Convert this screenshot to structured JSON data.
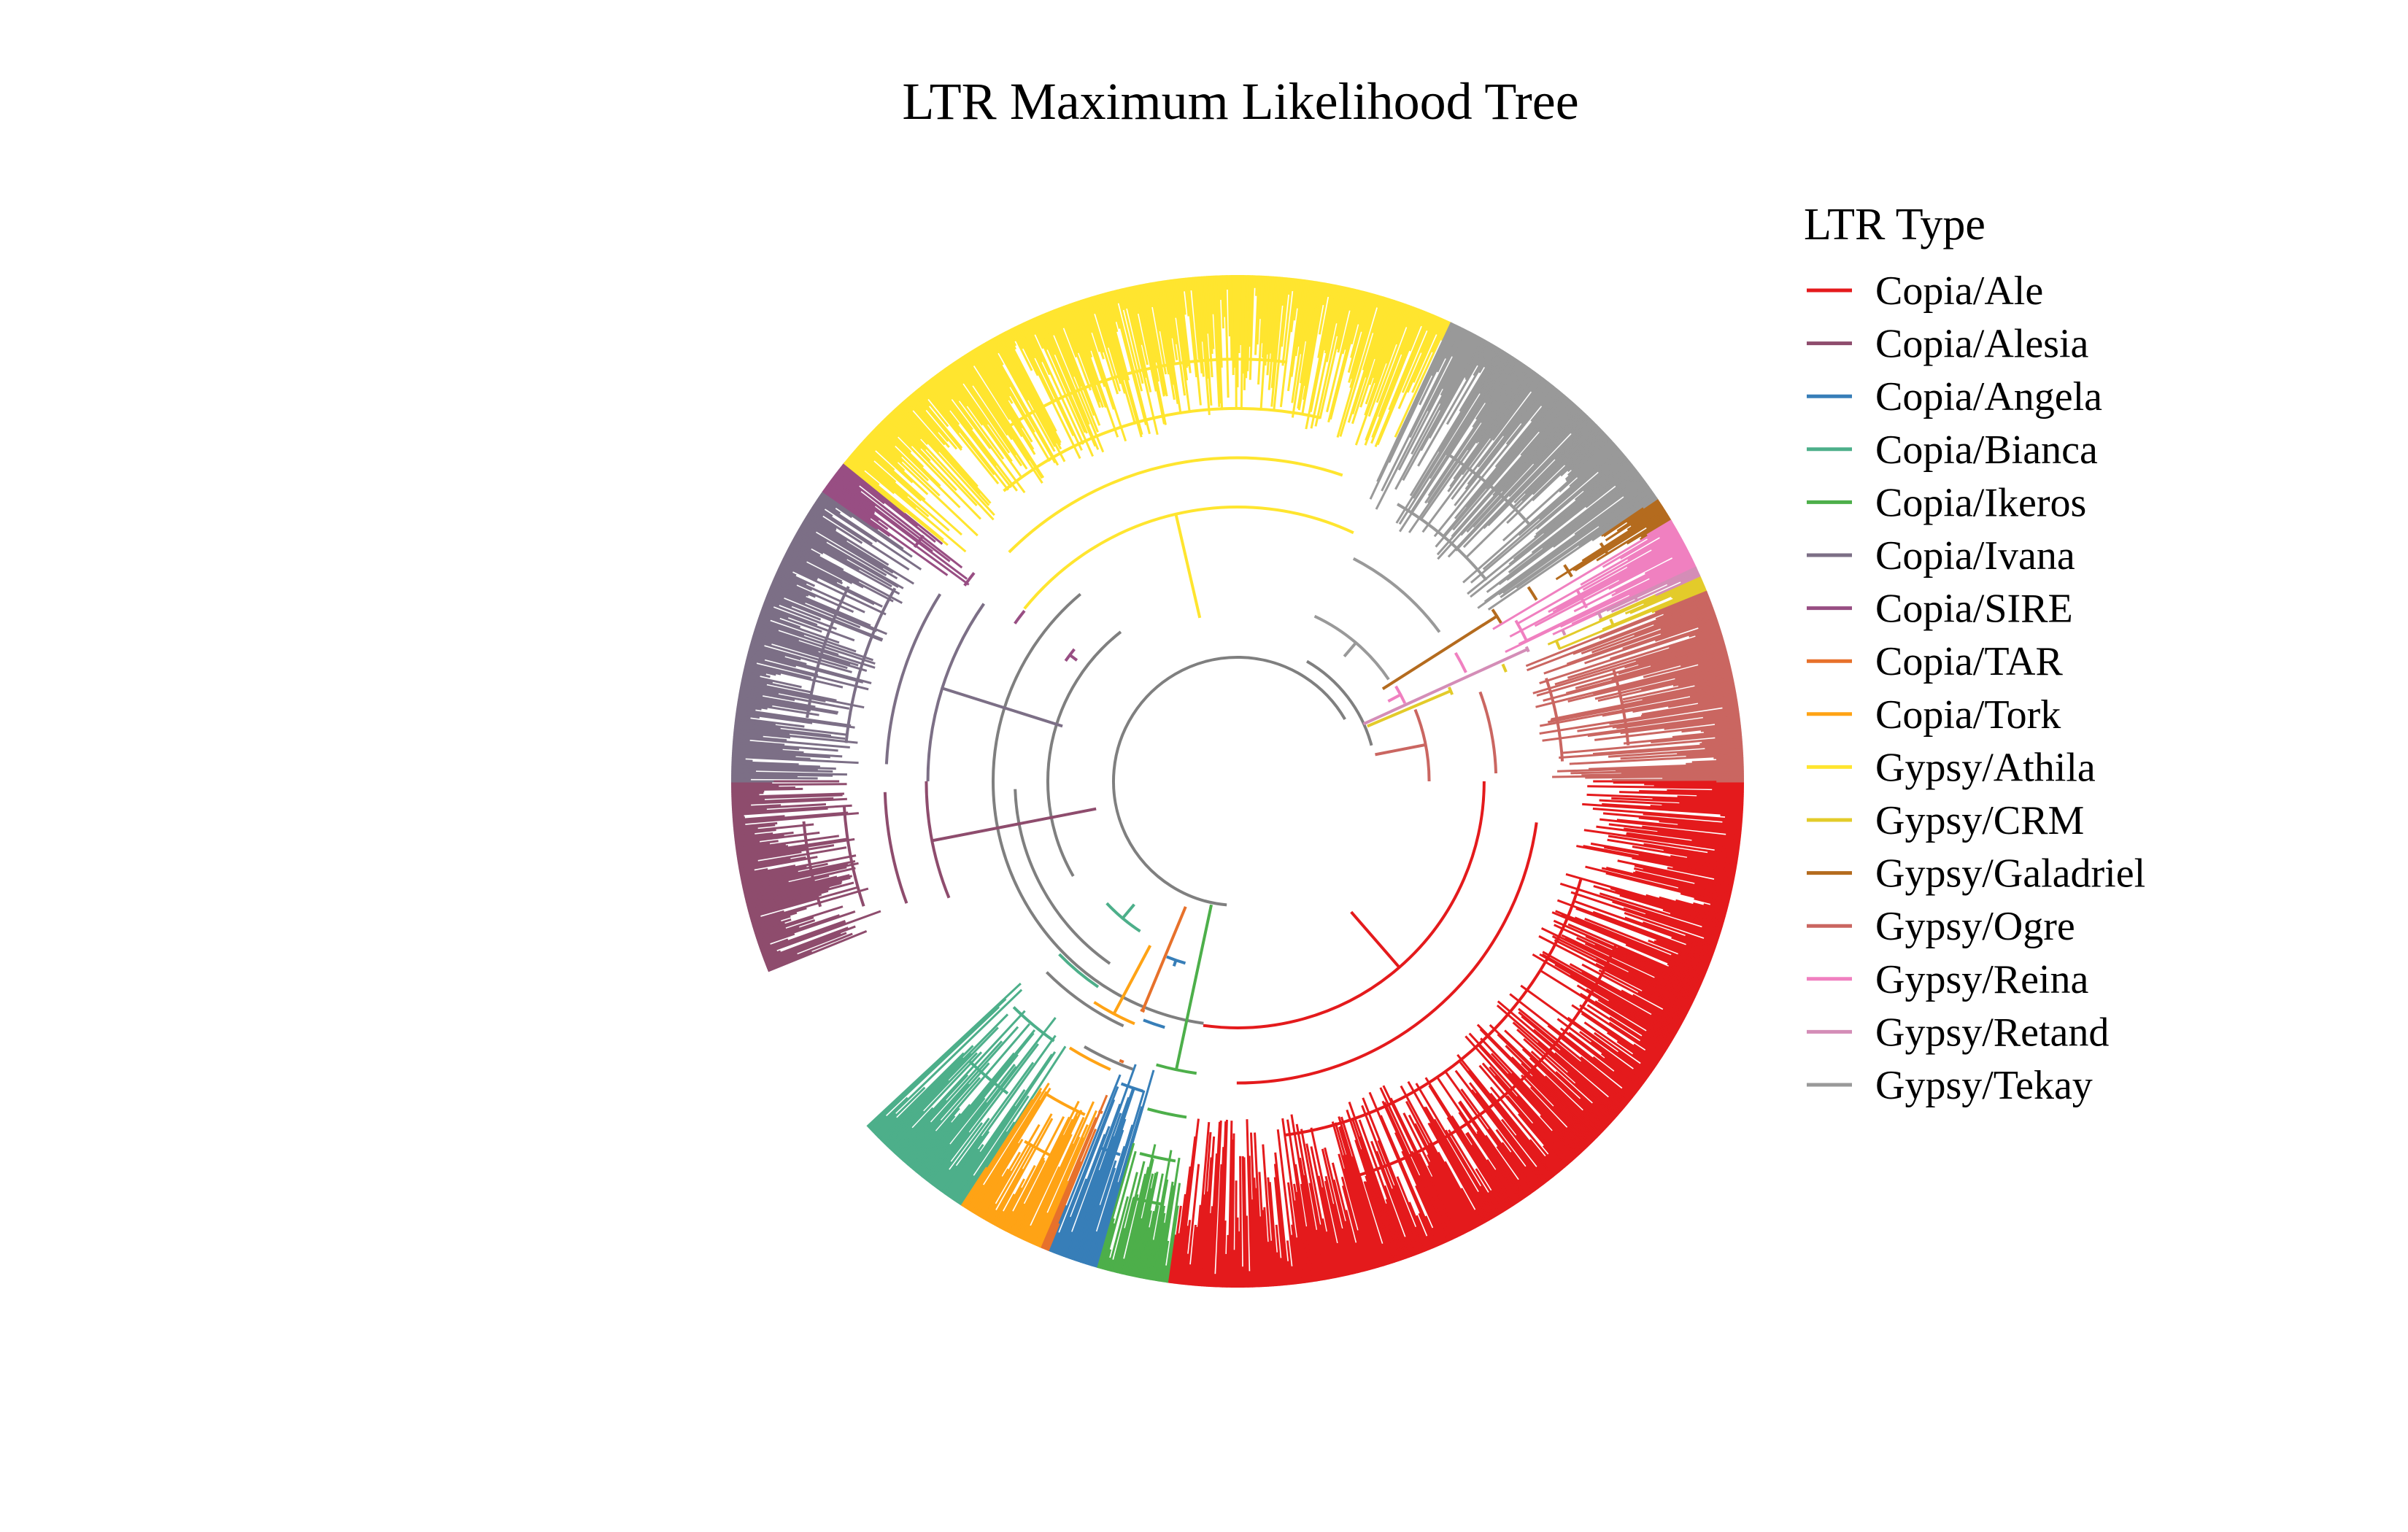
{
  "figure": {
    "title": "LTR Maximum Likelihood Tree",
    "legend_title": "LTR Type"
  },
  "chart_data": {
    "type": "circular-phylogenetic-tree",
    "title": "LTR Maximum Likelihood Tree",
    "legend_title": "LTR Type",
    "legend_placement": "right",
    "clades": [
      {
        "name": "Copia/Ale",
        "color": "#E41A1C",
        "arc_start_deg": 0,
        "arc_end_deg": 98
      },
      {
        "name": "Copia/Alesia",
        "color": "#8E4C6D",
        "arc_start_deg": 158,
        "arc_end_deg": 180
      },
      {
        "name": "Copia/Angela",
        "color": "#377EB8",
        "arc_start_deg": 106,
        "arc_end_deg": 112
      },
      {
        "name": "Copia/Bianca",
        "color": "#4DAF8A",
        "arc_start_deg": 123,
        "arc_end_deg": 137
      },
      {
        "name": "Copia/Ikeros",
        "color": "#4DAF4A",
        "arc_start_deg": 98,
        "arc_end_deg": 106
      },
      {
        "name": "Copia/Ivana",
        "color": "#7C6F86",
        "arc_start_deg": 180,
        "arc_end_deg": 215
      },
      {
        "name": "Copia/SIRE",
        "color": "#984E83",
        "arc_start_deg": 215,
        "arc_end_deg": 219
      },
      {
        "name": "Copia/TAR",
        "color": "#E7712B",
        "arc_start_deg": 112,
        "arc_end_deg": 113
      },
      {
        "name": "Copia/Tork",
        "color": "#FFA315",
        "arc_start_deg": 113,
        "arc_end_deg": 123
      },
      {
        "name": "Gypsy/Athila",
        "color": "#FFE52F",
        "arc_start_deg": 219,
        "arc_end_deg": 295
      },
      {
        "name": "Gypsy/CRM",
        "color": "#E3CB2A",
        "arc_start_deg": 336,
        "arc_end_deg": 338
      },
      {
        "name": "Gypsy/Galadriel",
        "color": "#B46B1E",
        "arc_start_deg": 326,
        "arc_end_deg": 329
      },
      {
        "name": "Gypsy/Ogre",
        "color": "#CA6661",
        "arc_start_deg": 338,
        "arc_end_deg": 360
      },
      {
        "name": "Gypsy/Reina",
        "color": "#F080C0",
        "arc_start_deg": 329,
        "arc_end_deg": 335
      },
      {
        "name": "Gypsy/Retand",
        "color": "#D48DB7",
        "arc_start_deg": 335,
        "arc_end_deg": 336
      },
      {
        "name": "Gypsy/Tekay",
        "color": "#999999",
        "arc_start_deg": 295,
        "arc_end_deg": 326
      }
    ]
  }
}
